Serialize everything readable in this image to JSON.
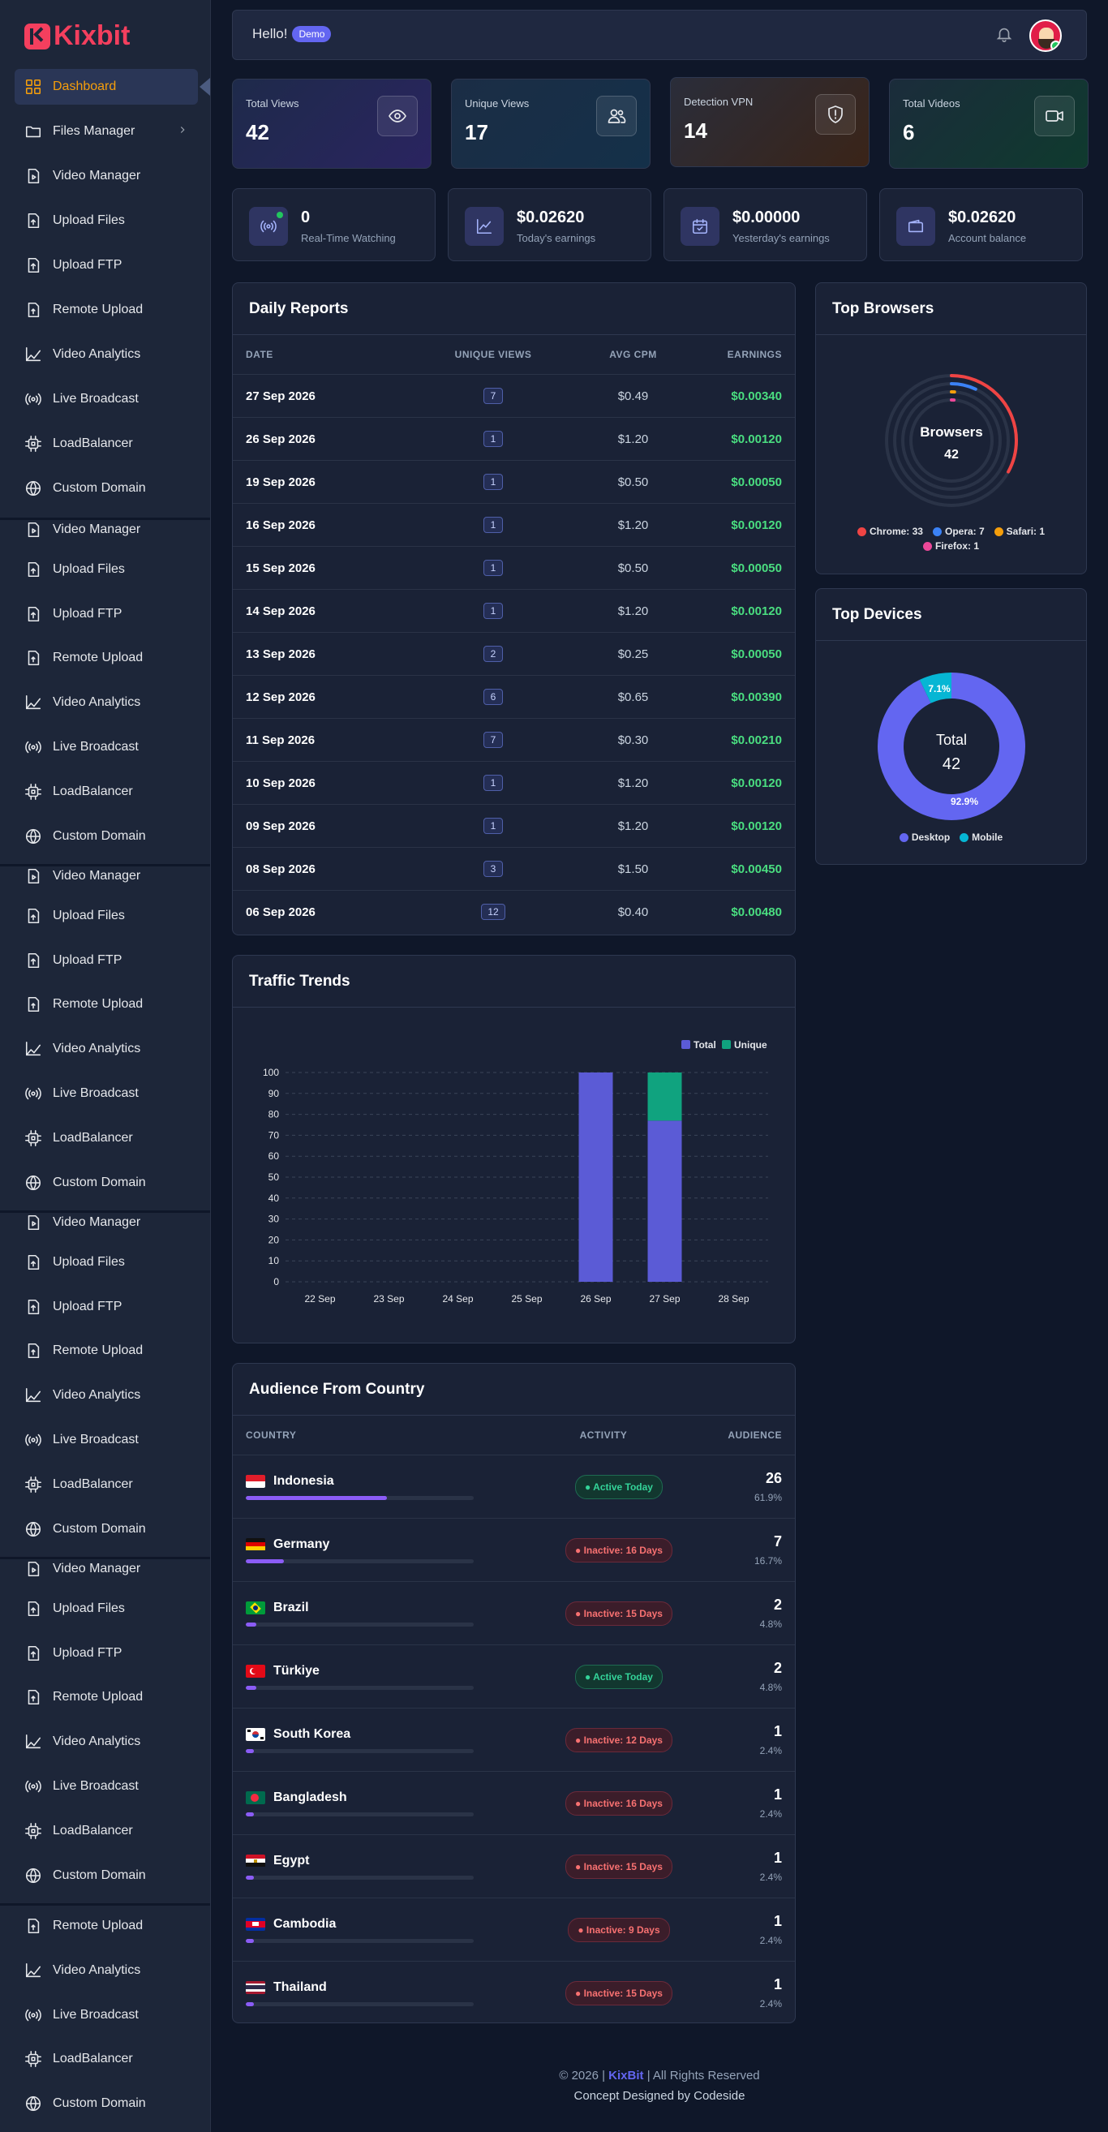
{
  "brand": {
    "name": "Kixbit"
  },
  "sidebar": {
    "items": [
      {
        "label": "Dashboard",
        "icon": "dashboard-icon",
        "active": true
      },
      {
        "label": "Files Manager",
        "icon": "folder-icon",
        "has_submenu": true
      },
      {
        "label": "Video Manager",
        "icon": "video-file-icon"
      },
      {
        "label": "Upload Files",
        "icon": "upload-file-icon"
      },
      {
        "label": "Upload FTP",
        "icon": "upload-ftp-icon"
      },
      {
        "label": "Remote Upload",
        "icon": "remote-upload-icon"
      },
      {
        "label": "Video Analytics",
        "icon": "analytics-icon"
      },
      {
        "label": "Live Broadcast",
        "icon": "broadcast-icon"
      },
      {
        "label": "LoadBalancer",
        "icon": "chip-icon"
      },
      {
        "label": "Custom Domain",
        "icon": "globe-icon"
      }
    ],
    "repeat_block": [
      "Video Manager",
      "Upload Files",
      "Upload FTP",
      "Remote Upload",
      "Video Analytics",
      "Live Broadcast",
      "LoadBalancer",
      "Custom Domain"
    ],
    "tail_block": [
      "Remote Upload",
      "Video Analytics",
      "Live Broadcast",
      "LoadBalancer",
      "Custom Domain"
    ]
  },
  "header": {
    "greeting": "Hello!",
    "badge": "Demo"
  },
  "stats": [
    {
      "label": "Total Views",
      "value": "42",
      "icon": "eye-icon"
    },
    {
      "label": "Unique Views",
      "value": "17",
      "icon": "users-icon"
    },
    {
      "label": "Detection VPN",
      "value": "14",
      "icon": "shield-icon"
    },
    {
      "label": "Total Videos",
      "value": "6",
      "icon": "video-camera-icon"
    }
  ],
  "mini_stats": [
    {
      "value": "0",
      "label": "Real-Time Watching",
      "icon": "broadcast-live-icon"
    },
    {
      "value": "$0.02620",
      "label": "Today's earnings",
      "icon": "chart-line-icon"
    },
    {
      "value": "$0.00000",
      "label": "Yesterday's earnings",
      "icon": "calendar-icon"
    },
    {
      "value": "$0.02620",
      "label": "Account balance",
      "icon": "wallet-icon"
    }
  ],
  "daily_reports": {
    "title": "Daily Reports",
    "columns": [
      "DATE",
      "UNIQUE VIEWS",
      "AVG CPM",
      "EARNINGS"
    ],
    "rows": [
      {
        "date": "27 Sep 2026",
        "uv": "7",
        "cpm": "$0.49",
        "earn": "$0.00340"
      },
      {
        "date": "26 Sep 2026",
        "uv": "1",
        "cpm": "$1.20",
        "earn": "$0.00120"
      },
      {
        "date": "19 Sep 2026",
        "uv": "1",
        "cpm": "$0.50",
        "earn": "$0.00050"
      },
      {
        "date": "16 Sep 2026",
        "uv": "1",
        "cpm": "$1.20",
        "earn": "$0.00120"
      },
      {
        "date": "15 Sep 2026",
        "uv": "1",
        "cpm": "$0.50",
        "earn": "$0.00050"
      },
      {
        "date": "14 Sep 2026",
        "uv": "1",
        "cpm": "$1.20",
        "earn": "$0.00120"
      },
      {
        "date": "13 Sep 2026",
        "uv": "2",
        "cpm": "$0.25",
        "earn": "$0.00050"
      },
      {
        "date": "12 Sep 2026",
        "uv": "6",
        "cpm": "$0.65",
        "earn": "$0.00390"
      },
      {
        "date": "11 Sep 2026",
        "uv": "7",
        "cpm": "$0.30",
        "earn": "$0.00210"
      },
      {
        "date": "10 Sep 2026",
        "uv": "1",
        "cpm": "$1.20",
        "earn": "$0.00120"
      },
      {
        "date": "09 Sep 2026",
        "uv": "1",
        "cpm": "$1.20",
        "earn": "$0.00120"
      },
      {
        "date": "08 Sep 2026",
        "uv": "3",
        "cpm": "$1.50",
        "earn": "$0.00450"
      },
      {
        "date": "06 Sep 2026",
        "uv": "12",
        "cpm": "$0.40",
        "earn": "$0.00480"
      }
    ]
  },
  "top_browsers": {
    "title": "Top Browsers",
    "center_label": "Browsers",
    "center_value": "42",
    "items": [
      {
        "name": "Chrome",
        "count": 33,
        "text": "Chrome: 33",
        "color": "#ef4444"
      },
      {
        "name": "Opera",
        "count": 7,
        "text": "Opera: 7",
        "color": "#3b82f6"
      },
      {
        "name": "Safari",
        "count": 1,
        "text": "Safari: 1",
        "color": "#f59e0b"
      },
      {
        "name": "Firefox",
        "count": 1,
        "text": "Firefox: 1",
        "color": "#ec4899"
      }
    ]
  },
  "top_devices": {
    "title": "Top Devices",
    "center_label": "Total",
    "center_value": "42",
    "items": [
      {
        "name": "Desktop",
        "pct": 92.9,
        "text": "92.9%",
        "color": "#6366f1"
      },
      {
        "name": "Mobile",
        "pct": 7.1,
        "text": "7.1%",
        "color": "#06b6d4"
      }
    ]
  },
  "chart_data": {
    "type": "bar",
    "title": "Traffic Trends",
    "categories": [
      "22 Sep",
      "23 Sep",
      "24 Sep",
      "25 Sep",
      "26 Sep",
      "27 Sep",
      "28 Sep"
    ],
    "series": [
      {
        "name": "Total",
        "values": [
          0,
          0,
          0,
          0,
          100,
          77,
          0
        ],
        "color": "#5b5bd6"
      },
      {
        "name": "Unique",
        "values": [
          0,
          0,
          0,
          0,
          0,
          23,
          0
        ],
        "color": "#10a37f"
      }
    ],
    "stacked": true,
    "ylim": [
      0,
      100
    ],
    "yticks": [
      0,
      10,
      20,
      30,
      40,
      50,
      60,
      70,
      80,
      90,
      100
    ],
    "legend": "top-right",
    "grid": true
  },
  "audience": {
    "title": "Audience From Country",
    "columns": [
      "COUNTRY",
      "ACTIVITY",
      "AUDIENCE"
    ],
    "rows": [
      {
        "country": "Indonesia",
        "flag": "id",
        "activity": "● Active Today",
        "active": true,
        "count": "26",
        "pct": "61.9%",
        "share": 61.9
      },
      {
        "country": "Germany",
        "flag": "de",
        "activity": "● Inactive: 16 Days",
        "active": false,
        "count": "7",
        "pct": "16.7%",
        "share": 16.7
      },
      {
        "country": "Brazil",
        "flag": "br",
        "activity": "● Inactive: 15 Days",
        "active": false,
        "count": "2",
        "pct": "4.8%",
        "share": 4.8
      },
      {
        "country": "Türkiye",
        "flag": "tr",
        "activity": "● Active Today",
        "active": true,
        "count": "2",
        "pct": "4.8%",
        "share": 4.8
      },
      {
        "country": "South Korea",
        "flag": "kr",
        "activity": "● Inactive: 12 Days",
        "active": false,
        "count": "1",
        "pct": "2.4%",
        "share": 2.4
      },
      {
        "country": "Bangladesh",
        "flag": "bd",
        "activity": "● Inactive: 16 Days",
        "active": false,
        "count": "1",
        "pct": "2.4%",
        "share": 2.4
      },
      {
        "country": "Egypt",
        "flag": "eg",
        "activity": "● Inactive: 15 Days",
        "active": false,
        "count": "1",
        "pct": "2.4%",
        "share": 2.4
      },
      {
        "country": "Cambodia",
        "flag": "kh",
        "activity": "● Inactive: 9 Days",
        "active": false,
        "count": "1",
        "pct": "2.4%",
        "share": 2.4
      },
      {
        "country": "Thailand",
        "flag": "th",
        "activity": "● Inactive: 15 Days",
        "active": false,
        "count": "1",
        "pct": "2.4%",
        "share": 2.4
      }
    ]
  },
  "footer": {
    "prefix": "© 2026 |",
    "brand": "KixBit",
    "suffix": "| All Rights Reserved",
    "line2": "Concept Designed by Codeside"
  }
}
